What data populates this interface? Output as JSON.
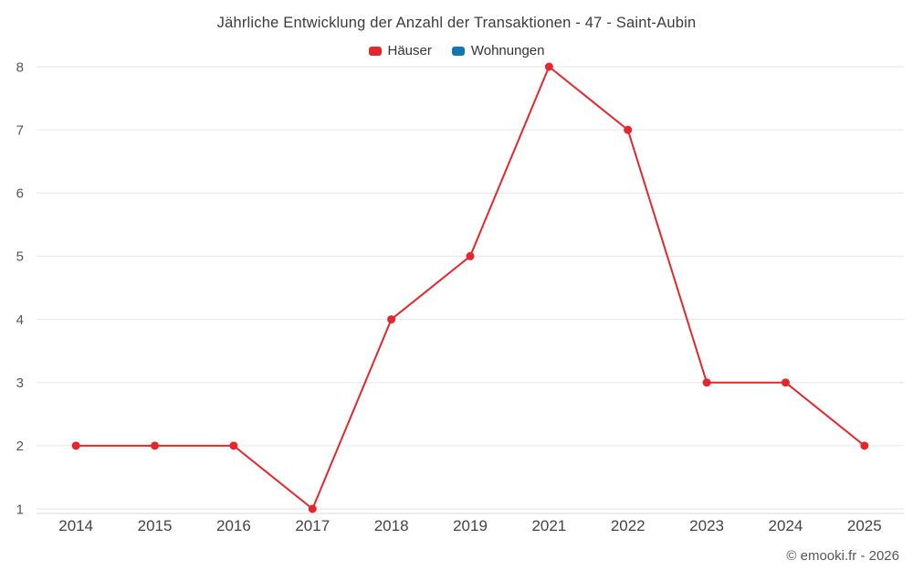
{
  "chart_data": {
    "type": "line",
    "title": "Jährliche Entwicklung der Anzahl der Transaktionen - 47 - Saint-Aubin",
    "categories": [
      "2014",
      "2015",
      "2016",
      "2017",
      "2018",
      "2019",
      "2021",
      "2022",
      "2023",
      "2024",
      "2025"
    ],
    "series": [
      {
        "name": "Häuser",
        "color": "#e5262d",
        "values": [
          2,
          2,
          2,
          1,
          4,
          5,
          8,
          7,
          3,
          3,
          2
        ]
      },
      {
        "name": "Wohnungen",
        "color": "#1276b0",
        "values": []
      }
    ],
    "xlabel": "",
    "ylabel": "",
    "ylim": [
      1,
      8
    ],
    "yticks": [
      1,
      2,
      3,
      4,
      5,
      6,
      7,
      8
    ],
    "grid": true,
    "legend_position": "top"
  },
  "footer": {
    "credit": "© emooki.fr - 2026"
  }
}
